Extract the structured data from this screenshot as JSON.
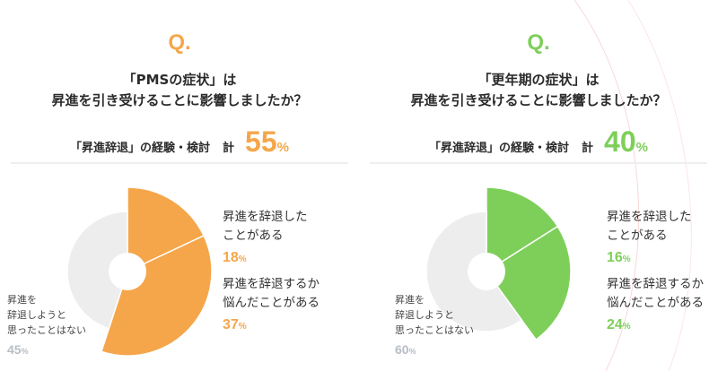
{
  "colors": {
    "orange": "#F5A64A",
    "green": "#7ECF5A",
    "gray": "#EDEDEE",
    "muted": "#B8BEC5",
    "accent_line": "#F5C8C8"
  },
  "chart_data": [
    {
      "type": "pie",
      "q_mark": "Q.",
      "title_line1": "「PMSの症状」は",
      "title_line2": "昇進を引き受けることに影響しましたか？",
      "summary_label": "「昇進辞退」の経験・検討",
      "summary_total_label": "計",
      "summary_total_value": "55",
      "pct_symbol": "%",
      "color": "#F5A64A",
      "slices": [
        {
          "label_line1": "昇進を辞退した",
          "label_line2": "ことがある",
          "value": 18
        },
        {
          "label_line1": "昇進を辞退するか",
          "label_line2": "悩んだことがある",
          "value": 37
        },
        {
          "label_line1": "昇進を",
          "label_line2": "辞退しようと",
          "label_line3": "思ったことはない",
          "value": 45
        }
      ]
    },
    {
      "type": "pie",
      "q_mark": "Q.",
      "title_line1": "「更年期の症状」は",
      "title_line2": "昇進を引き受けることに影響しましたか？",
      "summary_label": "「昇進辞退」の経験・検討",
      "summary_total_label": "計",
      "summary_total_value": "40",
      "pct_symbol": "%",
      "color": "#7ECF5A",
      "slices": [
        {
          "label_line1": "昇進を辞退した",
          "label_line2": "ことがある",
          "value": 16
        },
        {
          "label_line1": "昇進を辞退するか",
          "label_line2": "悩んだことがある",
          "value": 24
        },
        {
          "label_line1": "昇進を",
          "label_line2": "辞退しようと",
          "label_line3": "思ったことはない",
          "value": 60
        }
      ]
    }
  ]
}
